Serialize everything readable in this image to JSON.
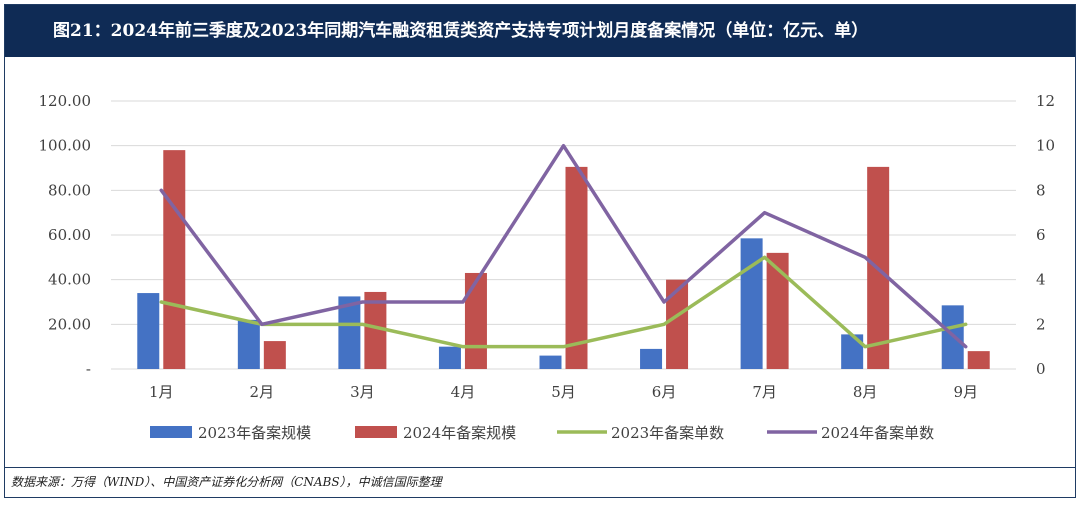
{
  "title": "图21：2024年前三季度及2023年同期汽车融资租赁类资产支持专项计划月度备案情况（单位：亿元、单）",
  "source": "数据来源：万得（WIND）、中国资产证券化分析网（CNABS），中诚信国际整理",
  "chart_data": {
    "type": "bar",
    "categories": [
      "1月",
      "2月",
      "3月",
      "4月",
      "5月",
      "6月",
      "7月",
      "8月",
      "9月"
    ],
    "y_left": {
      "ticks": [
        "-",
        "20.00",
        "40.00",
        "60.00",
        "80.00",
        "100.00",
        "120.00"
      ],
      "range": [
        0,
        120
      ]
    },
    "y_right": {
      "ticks": [
        "0",
        "2",
        "4",
        "6",
        "8",
        "10",
        "12"
      ],
      "range": [
        0,
        12
      ]
    },
    "grid": true,
    "legend_position": "bottom",
    "series": [
      {
        "name": "2023年备案规模",
        "type": "bar",
        "axis": "left",
        "color": "#4472c4",
        "values": [
          34,
          22,
          32.5,
          10,
          6,
          9,
          58.5,
          15.5,
          28.5
        ]
      },
      {
        "name": "2024年备案规模",
        "type": "bar",
        "axis": "left",
        "color": "#c0504d",
        "values": [
          98,
          12.5,
          34.5,
          43,
          90.5,
          40,
          52,
          90.5,
          8
        ]
      },
      {
        "name": "2023年备案单数",
        "type": "line",
        "axis": "right",
        "color": "#9bbb59",
        "values": [
          3,
          2,
          2,
          1,
          1,
          2,
          5,
          1,
          2
        ]
      },
      {
        "name": "2024年备案单数",
        "type": "line",
        "axis": "right",
        "color": "#8064a2",
        "values": [
          8,
          2,
          3,
          3,
          10,
          3,
          7,
          5,
          1
        ]
      }
    ]
  }
}
